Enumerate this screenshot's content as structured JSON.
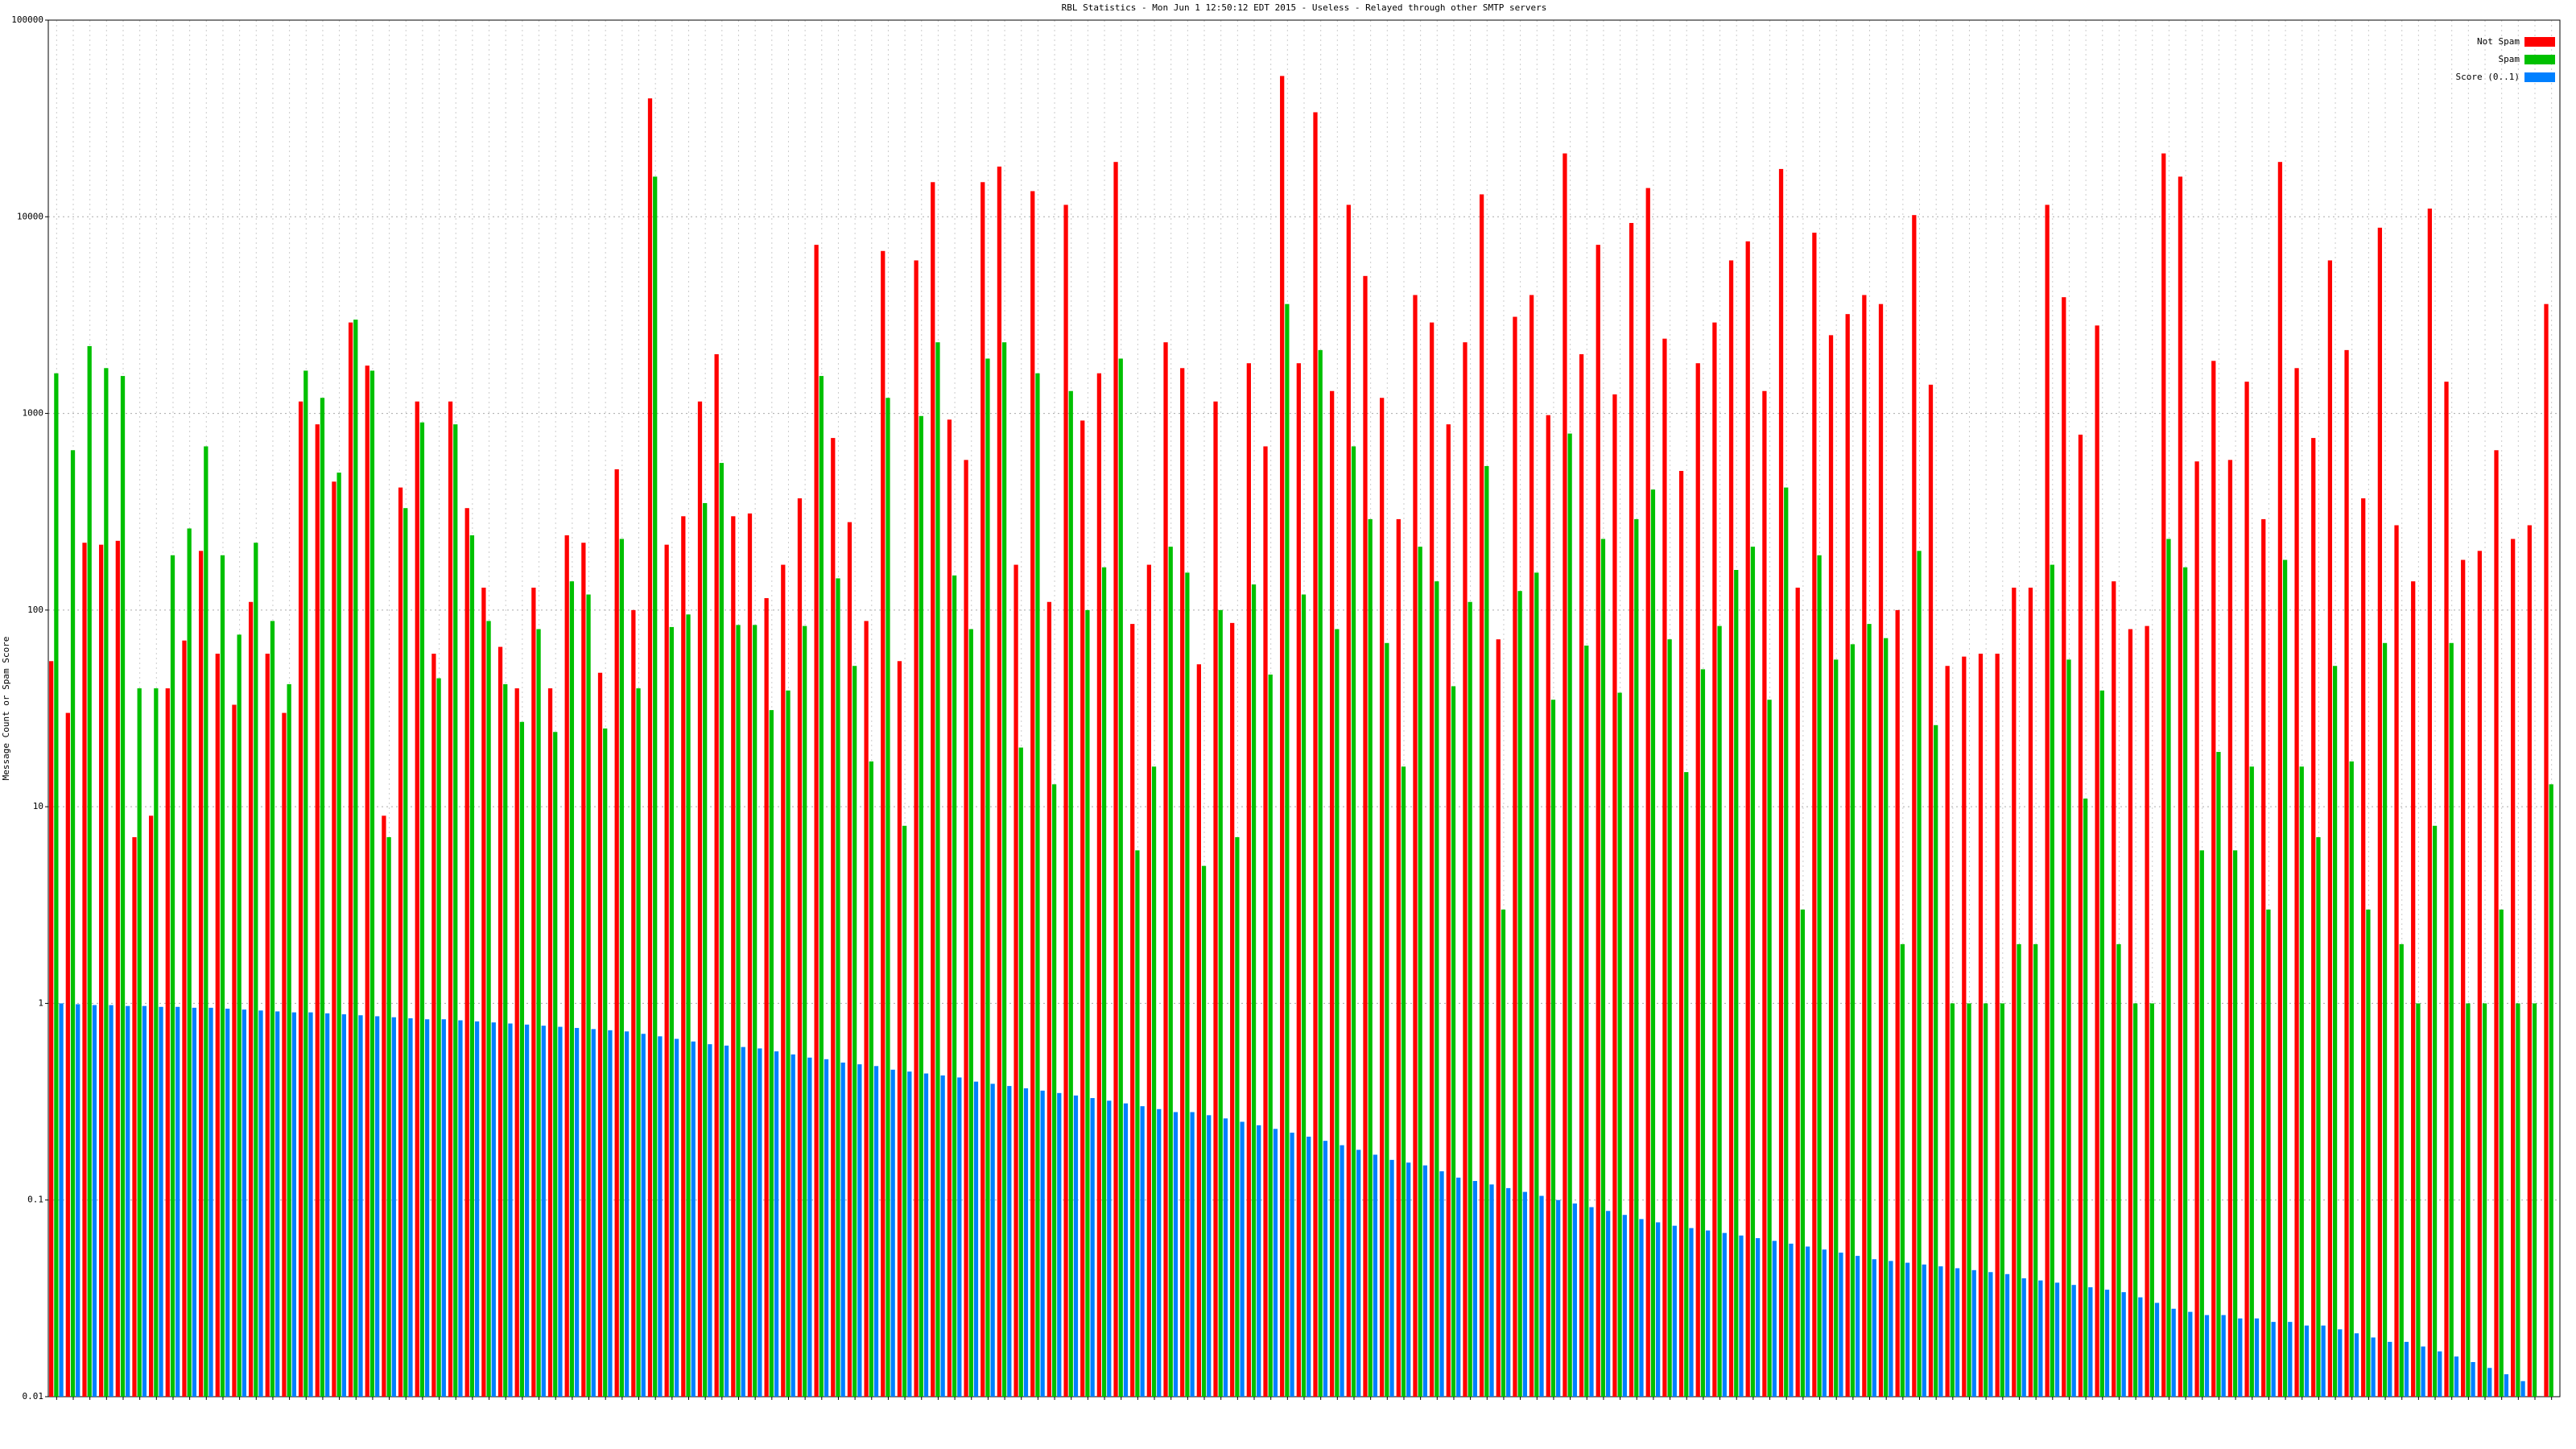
{
  "chart_data": {
    "type": "bar",
    "title": "RBL Statistics - Mon Jun  1 12:50:12 EDT 2015 - Useless - Relayed through other SMTP servers",
    "y_label": "Message Count or Spam Score",
    "log_scale": true,
    "grid": true,
    "legend": "upper right",
    "ylim": [
      0.01,
      100000
    ],
    "yticks": [
      0.01,
      0.1,
      1,
      10,
      100,
      1000,
      10000,
      100000
    ],
    "categories": [
      null,
      null,
      null,
      null,
      null,
      null,
      null,
      null,
      null,
      null,
      null,
      null,
      null,
      null,
      null,
      null,
      null,
      null,
      null,
      null,
      null,
      null,
      null,
      null,
      null,
      null,
      null,
      null,
      null,
      null,
      null,
      null,
      null,
      null,
      null,
      null,
      null,
      null,
      null,
      null,
      null,
      null,
      null,
      null,
      null,
      null,
      null,
      null,
      null,
      null,
      null,
      null,
      null,
      null,
      null,
      null,
      null,
      null,
      null,
      null,
      null,
      null,
      null,
      null,
      null,
      null,
      null,
      null,
      null,
      null,
      null,
      null,
      null,
      null,
      null,
      null,
      null,
      null,
      null,
      null,
      null,
      null,
      null,
      null,
      null,
      null,
      null,
      null,
      null,
      null,
      null,
      null,
      null,
      null,
      null,
      null,
      null,
      null,
      null,
      null,
      null,
      null,
      null,
      null,
      null,
      null,
      null,
      null,
      null,
      null,
      null,
      null,
      null,
      null,
      null,
      null,
      null,
      null,
      null,
      null,
      null,
      null,
      null,
      null,
      null,
      null,
      null,
      null,
      null,
      null,
      null,
      null,
      null,
      null,
      null,
      null,
      null,
      null,
      null,
      null,
      null,
      null,
      null,
      null,
      null,
      null,
      null,
      null,
      null,
      null,
      null
    ],
    "series": [
      {
        "name": "Not Spam",
        "color": "#ff0000",
        "values": [
          55,
          30,
          220,
          215,
          225,
          7,
          9,
          40,
          70,
          200,
          60,
          33,
          110,
          60,
          30,
          1150,
          880,
          450,
          2900,
          1750,
          9,
          420,
          1150,
          60,
          1150,
          330,
          130,
          65,
          40,
          130,
          40,
          240,
          220,
          48,
          520,
          100,
          40000,
          215,
          300,
          1150,
          2000,
          300,
          310,
          115,
          170,
          370,
          7200,
          750,
          280,
          88,
          6700,
          55,
          6000,
          15000,
          930,
          580,
          15000,
          18000,
          170,
          13500,
          110,
          11500,
          920,
          1600,
          19000,
          85,
          170,
          2300,
          1700,
          53,
          1150,
          86,
          1800,
          680,
          52000,
          1800,
          34000,
          1300,
          11500,
          5000,
          1200,
          290,
          4000,
          2900,
          880,
          2300,
          13000,
          71,
          3100,
          4000,
          980,
          21000,
          2000,
          7200,
          1250,
          9300,
          14000,
          2400,
          510,
          1800,
          2900,
          6000,
          7500,
          1300,
          17500,
          130,
          8300,
          2500,
          3200,
          4000,
          3600,
          100,
          10200,
          1400,
          52,
          58,
          60,
          60,
          130,
          130,
          11500,
          3900,
          780,
          2800,
          140,
          80,
          83,
          21000,
          16000,
          570,
          1850,
          580,
          1450,
          290,
          19000,
          1700,
          750,
          6000,
          2100,
          370,
          8800,
          270,
          140,
          11000,
          1450,
          180,
          200,
          650,
          230,
          270,
          3600
        ]
      },
      {
        "name": "Spam",
        "color": "#00c000",
        "values": [
          1600,
          650,
          2200,
          1700,
          1550,
          40,
          40,
          190,
          260,
          680,
          190,
          75,
          220,
          88,
          42,
          1650,
          1200,
          500,
          3000,
          1650,
          7,
          330,
          900,
          45,
          880,
          240,
          88,
          42,
          27,
          80,
          24,
          140,
          120,
          25,
          230,
          40,
          16000,
          82,
          95,
          350,
          560,
          84,
          84,
          31,
          39,
          83,
          1550,
          145,
          52,
          17,
          1200,
          8,
          970,
          2300,
          150,
          80,
          1900,
          2300,
          20,
          1600,
          13,
          1300,
          100,
          165,
          1900,
          6,
          16,
          210,
          155,
          5,
          100,
          7,
          135,
          47,
          3600,
          120,
          2100,
          80,
          680,
          290,
          68,
          16,
          210,
          140,
          41,
          110,
          540,
          3,
          125,
          155,
          35,
          790,
          66,
          230,
          38,
          290,
          410,
          71,
          15,
          50,
          83,
          160,
          210,
          35,
          420,
          3,
          190,
          56,
          67,
          85,
          72,
          2,
          200,
          26,
          1,
          1,
          1,
          1,
          2,
          2,
          170,
          56,
          11,
          39,
          2,
          1,
          1,
          230,
          165,
          6,
          19,
          6,
          16,
          3,
          180,
          16,
          7,
          52,
          17,
          3,
          68,
          2,
          1,
          8,
          68,
          1,
          1,
          3,
          1,
          1,
          13
        ]
      },
      {
        "name": "Score (0..1)",
        "color": "#0080ff",
        "values": [
          1,
          0.99,
          0.98,
          0.98,
          0.97,
          0.97,
          0.96,
          0.96,
          0.95,
          0.95,
          0.94,
          0.93,
          0.92,
          0.91,
          0.9,
          0.9,
          0.89,
          0.88,
          0.87,
          0.86,
          0.85,
          0.84,
          0.83,
          0.83,
          0.82,
          0.81,
          0.8,
          0.79,
          0.78,
          0.77,
          0.76,
          0.75,
          0.74,
          0.73,
          0.72,
          0.7,
          0.68,
          0.66,
          0.64,
          0.62,
          0.61,
          0.6,
          0.59,
          0.57,
          0.55,
          0.53,
          0.52,
          0.5,
          0.49,
          0.48,
          0.46,
          0.45,
          0.44,
          0.43,
          0.42,
          0.4,
          0.39,
          0.38,
          0.37,
          0.36,
          0.35,
          0.34,
          0.33,
          0.32,
          0.31,
          0.3,
          0.29,
          0.28,
          0.28,
          0.27,
          0.26,
          0.25,
          0.24,
          0.23,
          0.22,
          0.21,
          0.2,
          0.19,
          0.18,
          0.17,
          0.16,
          0.155,
          0.15,
          0.14,
          0.13,
          0.125,
          0.12,
          0.115,
          0.11,
          0.105,
          0.1,
          0.096,
          0.092,
          0.088,
          0.084,
          0.08,
          0.077,
          0.074,
          0.072,
          0.07,
          0.068,
          0.066,
          0.064,
          0.062,
          0.06,
          0.058,
          0.056,
          0.054,
          0.052,
          0.05,
          0.049,
          0.048,
          0.047,
          0.046,
          0.045,
          0.044,
          0.043,
          0.042,
          0.04,
          0.039,
          0.038,
          0.037,
          0.036,
          0.035,
          0.034,
          0.032,
          0.03,
          0.028,
          0.027,
          0.026,
          0.026,
          0.025,
          0.025,
          0.024,
          0.024,
          0.023,
          0.023,
          0.022,
          0.021,
          0.02,
          0.019,
          0.019,
          0.018,
          0.017,
          0.016,
          0.015,
          0.014,
          0.013,
          0.012,
          null,
          null
        ]
      }
    ]
  }
}
